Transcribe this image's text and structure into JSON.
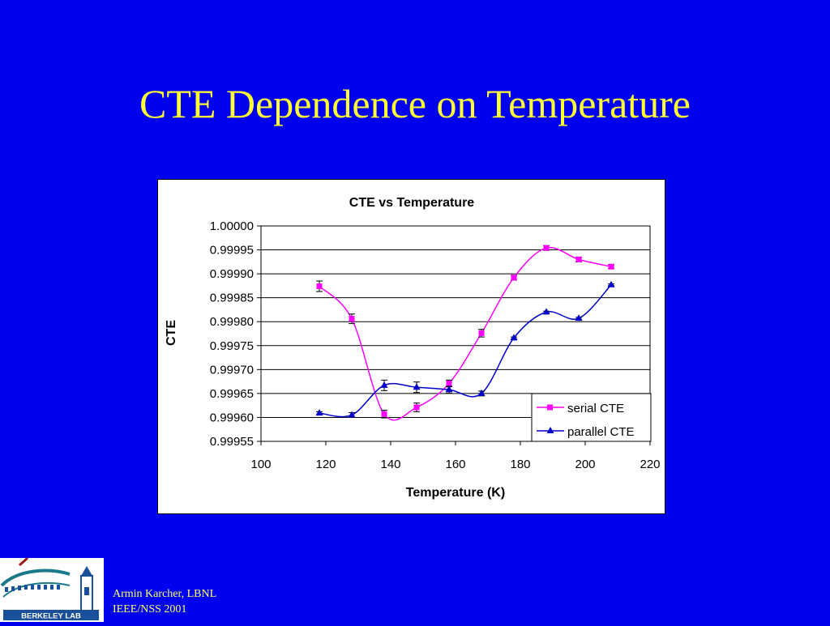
{
  "slide": {
    "title": "CTE Dependence on Temperature",
    "footer_line1": "Armin Karcher, LBNL",
    "footer_line2": "IEEE/NSS 2001",
    "logo_text": "BERKELEY LAB",
    "background_color": "#0000f0",
    "title_color": "#ffff33"
  },
  "chart_data": {
    "type": "scatter",
    "title": "CTE vs Temperature",
    "xlabel": "Temperature (K)",
    "ylabel": "CTE",
    "xlim": [
      100,
      220
    ],
    "ylim": [
      0.99955,
      1.0
    ],
    "x_ticks": [
      "100",
      "120",
      "140",
      "160",
      "180",
      "200",
      "220"
    ],
    "y_ticks": [
      "0.99955",
      "0.99960",
      "0.99965",
      "0.99970",
      "0.99975",
      "0.99980",
      "0.99985",
      "0.99990",
      "0.99995",
      "1.00000"
    ],
    "grid": "horizontal",
    "legend_position": "bottom-right",
    "smoothed_lines": true,
    "series": [
      {
        "name": "serial CTE",
        "color": "#ff00ff",
        "marker": "square",
        "x": [
          118,
          128,
          138,
          148,
          158,
          168,
          178,
          188,
          198,
          208
        ],
        "y": [
          0.999874,
          0.999806,
          0.999607,
          0.999621,
          0.999671,
          0.999776,
          0.999892,
          0.999954,
          0.99993,
          0.999915
        ],
        "error": [
          1.1e-05,
          1e-05,
          8e-06,
          9e-06,
          7e-06,
          8e-06,
          5e-06,
          5e-06,
          5e-06,
          4e-06
        ]
      },
      {
        "name": "parallel CTE",
        "color": "#0000cc",
        "marker": "triangle",
        "x": [
          118,
          128,
          138,
          148,
          158,
          168,
          178,
          188,
          198,
          208
        ],
        "y": [
          0.999609,
          0.999605,
          0.999667,
          0.999663,
          0.999658,
          0.99965,
          0.999766,
          0.99982,
          0.999807,
          0.999877
        ],
        "error": [
          3e-06,
          5e-06,
          1.1e-05,
          1.1e-05,
          7e-06,
          5e-06,
          2e-06,
          2e-06,
          2e-06,
          2e-06
        ]
      }
    ]
  }
}
